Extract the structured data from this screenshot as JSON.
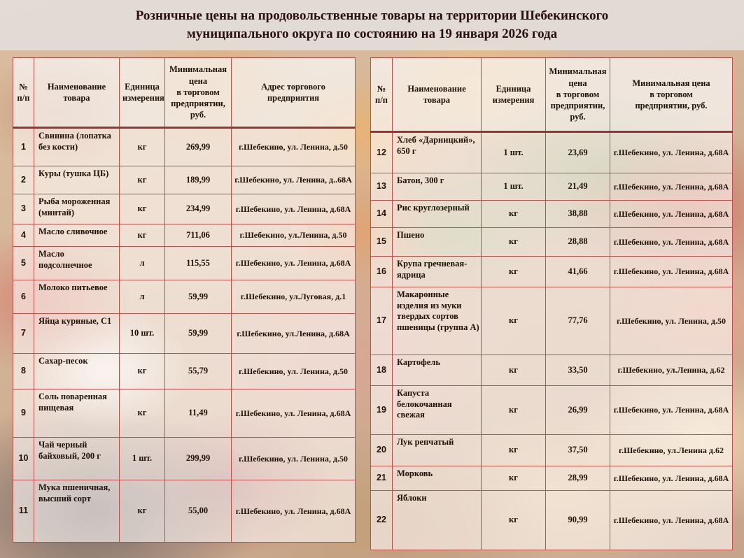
{
  "title": {
    "line1": "Розничные цены на продовольственные товары на территории Шебекинского",
    "line2": "муниципального округа по состоянию на 19 января 2026 года"
  },
  "colors": {
    "table_border": "#bf4f4b",
    "table_border_thick": "#943634",
    "title_text": "#2a0f0f",
    "cell_text": "#1f1108"
  },
  "tables": {
    "left": {
      "headers": [
        "№\nп/п",
        "Наименование\nтовара",
        "Единица\nизмерения",
        "Минимальная\nцена\nв торговом\nпредприятии,\nруб.",
        "Адрес  торгового\nпредприятия"
      ],
      "rows": [
        {
          "num": "1",
          "name": "Свинина (лопатка без кости)",
          "unit": "кг",
          "price": "269,99",
          "address": "г.Шебекино, ул. Ленина, д.50"
        },
        {
          "num": "2",
          "name": "Куры (тушка ЦБ)",
          "unit": "кг",
          "price": "189,99",
          "address": "г.Шебекино, ул. Ленина, д..68А"
        },
        {
          "num": "3",
          "name": "Рыба мороженная (минтай)",
          "unit": "кг",
          "price": "234,99",
          "address": "г.Шебекино, ул. Ленина, д.68А"
        },
        {
          "num": "4",
          "name": "Масло сливочное",
          "unit": "кг",
          "price": "711,06",
          "address": "г.Шебекино, ул.Ленина, д.50"
        },
        {
          "num": "5",
          "name": "Масло подсолнечное",
          "unit": "л",
          "price": "115,55",
          "address": "г.Шебекино, ул. Ленина, д.68А"
        },
        {
          "num": "6",
          "name": "Молоко питьевое",
          "unit": "л",
          "price": "59,99",
          "address": "г.Шебекино, ул.Луговая, д.1"
        },
        {
          "num": "7",
          "name": "Яйца куриные, С1",
          "unit": "10 шт.",
          "price": "59,99",
          "address": "г.Шебекино, ул.Ленина, д.68А"
        },
        {
          "num": "8",
          "name": "Сахар-песок",
          "unit": "кг",
          "price": "55,79",
          "address": "г.Шебекино, ул. Ленина, д.50"
        },
        {
          "num": "9",
          "name": "Соль поваренная пищевая",
          "unit": "кг",
          "price": "11,49",
          "address": "г.Шебекино, ул. Ленина, д.68А"
        },
        {
          "num": "10",
          "name": "Чай черный байховый, 200 г",
          "unit": "1 шт.",
          "price": "299,99",
          "address": "г.Шебекино, ул. Ленина, д.50"
        },
        {
          "num": "11",
          "name": "Мука пшеничная, высший сорт",
          "unit": "кг",
          "price": "55,00",
          "address": "г.Шебекино, ул. Ленина, д.68А"
        }
      ]
    },
    "right": {
      "headers": [
        "№\nп/п",
        "Наименование\nтовара",
        "Единица\nизмерения",
        "Минимальная\nцена\nв торговом\nпредприятии,\nруб.",
        "Минимальная  цена\nв торговом\nпредприятии,  руб."
      ],
      "rows": [
        {
          "num": "12",
          "name": "Хлеб «Дарницкий», 650 г",
          "unit": "1 шт.",
          "price": "23,69",
          "address": "г.Шебекино, ул. Ленина, д.68А"
        },
        {
          "num": "13",
          "name": "Батон, 300 г",
          "unit": "1 шт.",
          "price": "21,49",
          "address": "г.Шебекино, ул. Ленина, д.68А"
        },
        {
          "num": "14",
          "name": "Рис круглозерный",
          "unit": "кг",
          "price": "38,88",
          "address": "г.Шебекино, ул. Ленина, д.68А"
        },
        {
          "num": "15",
          "name": "Пшено",
          "unit": "кг",
          "price": "28,88",
          "address": "г.Шебекино, ул. Ленина, д.68А"
        },
        {
          "num": "16",
          "name": "Крупа гречневая-ядрица",
          "unit": "кг",
          "price": "41,66",
          "address": "г.Шебекино, ул. Ленина, д.68А"
        },
        {
          "num": "17",
          "name": "Макаронные изделия из муки твердых сортов пшеницы (группа А)",
          "unit": "кг",
          "price": "77,76",
          "address": "г.Шебекино, ул. Ленина, д.50"
        },
        {
          "num": "18",
          "name": "Картофель",
          "unit": "кг",
          "price": "33,50",
          "address": "г.Шебекино, ул.Ленина, д.62"
        },
        {
          "num": "19",
          "name": "Капуста белокочанная свежая",
          "unit": "кг",
          "price": "26,99",
          "address": "г.Шебекино, ул. Ленина, д.68А"
        },
        {
          "num": "20",
          "name": "Лук репчатый",
          "unit": "кг",
          "price": "37,50",
          "address": "г.Шебекино, ул.Ленина д.62"
        },
        {
          "num": "21",
          "name": "Морковь",
          "unit": "кг",
          "price": "28,99",
          "address": "г.Шебекино, ул. Ленина, д.68А"
        },
        {
          "num": "22",
          "name": "Яблоки",
          "unit": "кг",
          "price": "90,99",
          "address": "г.Шебекино, ул. Ленина, д.68А"
        }
      ]
    }
  }
}
